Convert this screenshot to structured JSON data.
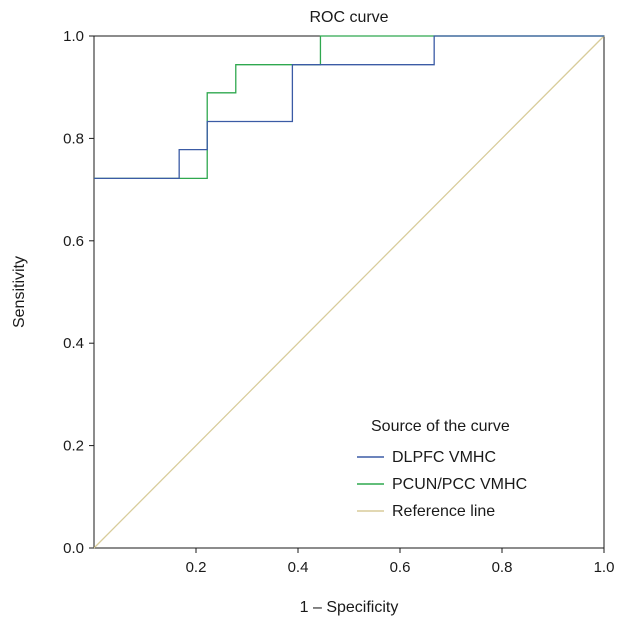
{
  "chart_data": {
    "type": "line",
    "title": "ROC curve",
    "xlabel": "1 – Specificity",
    "ylabel": "Sensitivity",
    "xlim": [
      0,
      1
    ],
    "ylim": [
      0,
      1
    ],
    "x_ticks": [
      {
        "value": 0.2,
        "label": "0.2"
      },
      {
        "value": 0.4,
        "label": "0.4"
      },
      {
        "value": 0.6,
        "label": "0.6"
      },
      {
        "value": 0.8,
        "label": "0.8"
      },
      {
        "value": 1.0,
        "label": "1.0"
      }
    ],
    "y_ticks": [
      {
        "value": 0.0,
        "label": "0.0"
      },
      {
        "value": 0.2,
        "label": "0.2"
      },
      {
        "value": 0.4,
        "label": "0.4"
      },
      {
        "value": 0.6,
        "label": "0.6"
      },
      {
        "value": 0.8,
        "label": "0.8"
      },
      {
        "value": 1.0,
        "label": "1.0"
      }
    ],
    "grid": false,
    "legend": {
      "title": "Source of the curve",
      "placement": "bottom-right"
    },
    "series": [
      {
        "name": "DLPFC VMHC",
        "color": "#3b5ba5",
        "points": [
          [
            0.0,
            0.722
          ],
          [
            0.167,
            0.722
          ],
          [
            0.167,
            0.778
          ],
          [
            0.222,
            0.778
          ],
          [
            0.222,
            0.833
          ],
          [
            0.389,
            0.833
          ],
          [
            0.389,
            0.944
          ],
          [
            0.667,
            0.944
          ],
          [
            0.667,
            1.0
          ],
          [
            1.0,
            1.0
          ]
        ]
      },
      {
        "name": "PCUN/PCC VMHC",
        "color": "#2fa84f",
        "points": [
          [
            0.0,
            0.722
          ],
          [
            0.222,
            0.722
          ],
          [
            0.222,
            0.889
          ],
          [
            0.278,
            0.889
          ],
          [
            0.278,
            0.944
          ],
          [
            0.444,
            0.944
          ],
          [
            0.444,
            1.0
          ],
          [
            1.0,
            1.0
          ]
        ]
      },
      {
        "name": "Reference line",
        "color": "#d8cc9a",
        "points": [
          [
            0.0,
            0.0
          ],
          [
            1.0,
            1.0
          ]
        ]
      }
    ]
  }
}
